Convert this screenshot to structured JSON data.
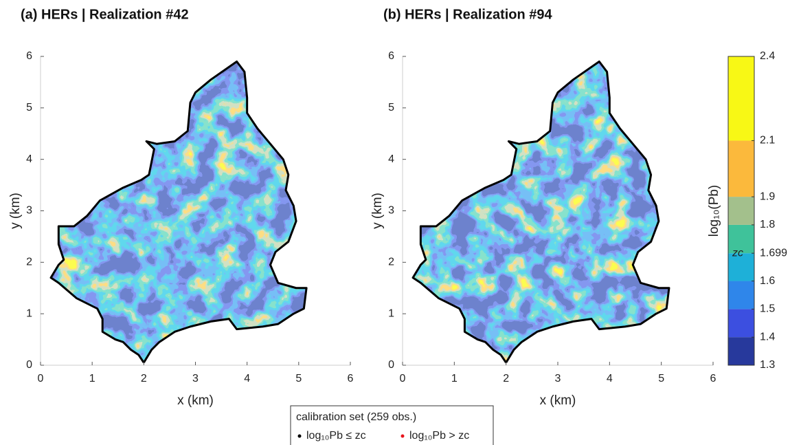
{
  "chart_data": [
    {
      "type": "map",
      "title": "(a) HERs | Realization #42",
      "xlabel": "x (km)",
      "ylabel": "y (km)",
      "xlim": [
        0,
        6
      ],
      "ylim": [
        0,
        6
      ],
      "xticks": [
        0,
        1,
        2,
        3,
        4,
        5,
        6
      ],
      "yticks": [
        0,
        1,
        2,
        3,
        4,
        5,
        6
      ],
      "boundary": {
        "x": [
          2.0,
          1.9,
          1.75,
          1.6,
          1.45,
          1.2,
          1.2,
          1.1,
          0.7,
          0.35,
          0.2,
          0.35,
          0.45,
          0.35,
          0.35,
          0.65,
          0.9,
          1.15,
          1.6,
          1.95,
          2.1,
          2.2,
          2.05,
          2.25,
          2.6,
          2.85,
          2.9,
          3.0,
          3.3,
          3.8,
          3.95,
          4.0,
          4.0,
          4.2,
          4.45,
          4.7,
          4.8,
          4.75,
          4.9,
          4.95,
          4.8,
          4.55,
          4.45,
          4.6,
          4.95,
          5.15,
          5.1,
          4.9,
          4.6,
          4.3,
          3.8,
          3.65,
          3.3,
          2.9,
          2.6,
          2.3,
          2.15,
          2.0
        ],
        "y": [
          0.05,
          0.2,
          0.3,
          0.45,
          0.5,
          0.65,
          0.9,
          1.1,
          1.3,
          1.6,
          1.7,
          1.95,
          2.05,
          2.35,
          2.7,
          2.7,
          2.9,
          3.2,
          3.45,
          3.6,
          3.7,
          4.2,
          4.35,
          4.3,
          4.35,
          4.55,
          5.1,
          5.3,
          5.55,
          5.9,
          5.7,
          5.2,
          4.9,
          4.6,
          4.3,
          4.0,
          3.7,
          3.4,
          3.1,
          2.8,
          2.4,
          2.2,
          1.95,
          1.6,
          1.5,
          1.5,
          1.1,
          1.0,
          0.8,
          0.75,
          0.7,
          0.9,
          0.85,
          0.75,
          0.65,
          0.45,
          0.3,
          0.05
        ]
      }
    },
    {
      "type": "map",
      "title": "(b) HERs | Realization #94",
      "xlabel": "x (km)",
      "ylabel": "y (km)",
      "xlim": [
        0,
        6
      ],
      "ylim": [
        0,
        6
      ],
      "xticks": [
        0,
        1,
        2,
        3,
        4,
        5,
        6
      ],
      "yticks": [
        0,
        1,
        2,
        3,
        4,
        5,
        6
      ],
      "boundary": {
        "x": [
          2.0,
          1.9,
          1.75,
          1.6,
          1.45,
          1.2,
          1.2,
          1.1,
          0.7,
          0.35,
          0.2,
          0.35,
          0.45,
          0.35,
          0.35,
          0.65,
          0.9,
          1.15,
          1.6,
          1.95,
          2.1,
          2.2,
          2.05,
          2.25,
          2.6,
          2.85,
          2.9,
          3.0,
          3.3,
          3.8,
          3.95,
          4.0,
          4.0,
          4.2,
          4.45,
          4.7,
          4.8,
          4.75,
          4.9,
          4.95,
          4.8,
          4.55,
          4.45,
          4.6,
          4.95,
          5.15,
          5.1,
          4.9,
          4.6,
          4.3,
          3.8,
          3.65,
          3.3,
          2.9,
          2.6,
          2.3,
          2.15,
          2.0
        ],
        "y": [
          0.05,
          0.2,
          0.3,
          0.45,
          0.5,
          0.65,
          0.9,
          1.1,
          1.3,
          1.6,
          1.7,
          1.95,
          2.05,
          2.35,
          2.7,
          2.7,
          2.9,
          3.2,
          3.45,
          3.6,
          3.7,
          4.2,
          4.35,
          4.3,
          4.35,
          4.55,
          5.1,
          5.3,
          5.55,
          5.9,
          5.7,
          5.2,
          4.9,
          4.6,
          4.3,
          4.0,
          3.7,
          3.4,
          3.1,
          2.8,
          2.4,
          2.2,
          1.95,
          1.6,
          1.5,
          1.5,
          1.1,
          1.0,
          0.8,
          0.75,
          0.7,
          0.9,
          0.85,
          0.75,
          0.65,
          0.45,
          0.3,
          0.05
        ]
      }
    },
    {
      "type": "colorbar",
      "label": "log₁₀(Pb)",
      "annotation": "zc",
      "annotation_value": 1.699,
      "ylim": [
        1.3,
        2.4
      ],
      "levels": [
        1.3,
        1.4,
        1.5,
        1.6,
        1.699,
        1.8,
        1.9,
        2.1,
        2.4
      ],
      "yticks": [
        1.3,
        1.4,
        1.5,
        1.6,
        1.699,
        1.8,
        1.9,
        2.1,
        2.4
      ],
      "colors": [
        "#27399c",
        "#3c4fe0",
        "#2f86ea",
        "#1eb0d8",
        "#3fc29a",
        "#a3c08c",
        "#fbb93c",
        "#f8f815"
      ]
    },
    {
      "type": "legend",
      "title": "calibration set (259 obs.)",
      "series": [
        {
          "name": "log₁₀Pb ≤ zc",
          "color": "#000000"
        },
        {
          "name": "log₁₀Pb > zc",
          "color": "#e8141c"
        }
      ]
    }
  ]
}
